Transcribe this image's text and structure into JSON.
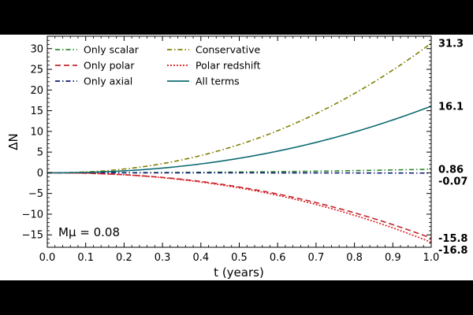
{
  "chart_data": {
    "type": "line",
    "title": "",
    "xlabel": "t (years)",
    "ylabel": "ΔN",
    "xlim": [
      0,
      1.0
    ],
    "ylim": [
      -18,
      33
    ],
    "x_ticks": [
      "0.0",
      "0.1",
      "0.2",
      "0.3",
      "0.4",
      "0.5",
      "0.6",
      "0.7",
      "0.8",
      "0.9",
      "1.0"
    ],
    "x_tick_values": [
      0,
      0.1,
      0.2,
      0.3,
      0.4,
      0.5,
      0.6,
      0.7,
      0.8,
      0.9,
      1.0
    ],
    "y_ticks": [
      "−15",
      "−10",
      "−5",
      "0",
      "5",
      "10",
      "15",
      "20",
      "25",
      "30"
    ],
    "y_tick_values": [
      -15,
      -10,
      -5,
      0,
      5,
      10,
      15,
      20,
      25,
      30
    ],
    "annotation": "Mμ = 0.08",
    "legend_location": "upper-left",
    "series": [
      {
        "name": "Only scalar",
        "final_value": 0.86,
        "end_label": "0.86",
        "color": "#2e8b2e",
        "dash": "dash-dot"
      },
      {
        "name": "Only polar",
        "final_value": -15.8,
        "end_label": "-15.8",
        "color": "#c0282c",
        "dash": "dashed"
      },
      {
        "name": "Only axial",
        "final_value": -0.07,
        "end_label": "-0.07",
        "color": "#0a1a78",
        "dash": "dash-dot"
      },
      {
        "name": "Conservative",
        "final_value": 31.3,
        "end_label": "31.3",
        "color": "#7f7f00",
        "dash": "dash-dot"
      },
      {
        "name": "Polar redshift",
        "final_value": -16.8,
        "end_label": "-16.8",
        "color": "#e0191f",
        "dash": "dotted"
      },
      {
        "name": "All terms",
        "final_value": 16.1,
        "end_label": "16.1",
        "color": "#0e6b73",
        "dash": "solid"
      }
    ]
  }
}
